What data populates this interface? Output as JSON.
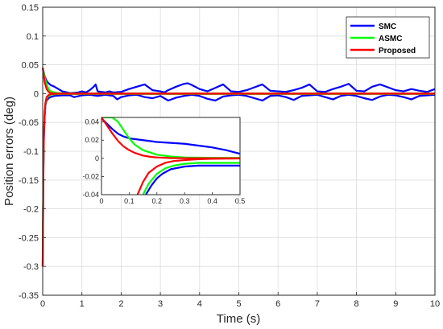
{
  "chart_data": {
    "type": "line",
    "title": "",
    "xlabel": "Time (s)",
    "ylabel": "Position errors (deg)",
    "xlim": [
      0,
      10
    ],
    "ylim": [
      -0.35,
      0.15
    ],
    "xticks": [
      "0",
      "1",
      "2",
      "3",
      "4",
      "5",
      "6",
      "7",
      "8",
      "9",
      "10"
    ],
    "yticks": [
      "0.15",
      "0.1",
      "0.05",
      "0",
      "-0.05",
      "-0.1",
      "-0.15",
      "-0.2",
      "-0.25",
      "-0.3",
      "-0.35"
    ],
    "grid": true,
    "legend_position": "top-right",
    "series": [
      {
        "name": "SMC",
        "color": "#0000ff",
        "upper": {
          "x": [
            0,
            0.05,
            0.1,
            0.15,
            0.2,
            0.3,
            0.4,
            0.5,
            0.7,
            0.9,
            1.0,
            1.1,
            1.2,
            1.3,
            1.35,
            1.4,
            1.5,
            1.6,
            1.7,
            1.8,
            2.0,
            2.2,
            2.4,
            2.6,
            2.8,
            3.0,
            3.1,
            3.2,
            3.4,
            3.6,
            3.7,
            3.8,
            4.0,
            4.2,
            4.4,
            4.6,
            4.8,
            5.0,
            5.2,
            5.4,
            5.6,
            5.8,
            6.0,
            6.2,
            6.4,
            6.6,
            6.8,
            7.0,
            7.2,
            7.4,
            7.6,
            7.8,
            8.0,
            8.2,
            8.4,
            8.6,
            8.8,
            9.0,
            9.2,
            9.4,
            9.6,
            9.8,
            10.0
          ],
          "y": [
            0.045,
            0.03,
            0.022,
            0.018,
            0.015,
            0.012,
            0.008,
            0.004,
            0.001,
            0.002,
            0.004,
            0.002,
            0.006,
            0.012,
            0.016,
            0.004,
            0.003,
            0.002,
            0.004,
            0.002,
            0.003,
            0.008,
            0.012,
            0.016,
            0.006,
            0.004,
            0.002,
            0.006,
            0.012,
            0.017,
            0.018,
            0.015,
            0.008,
            0.004,
            0.01,
            0.016,
            0.004,
            0.003,
            0.006,
            0.011,
            0.016,
            0.005,
            0.004,
            0.003,
            0.006,
            0.01,
            0.016,
            0.004,
            0.003,
            0.008,
            0.012,
            0.017,
            0.005,
            0.004,
            0.012,
            0.016,
            0.011,
            0.006,
            0.004,
            0.008,
            0.005,
            0.003,
            0.008
          ]
        },
        "lower": {
          "x": [
            0.0,
            0.01,
            0.02,
            0.03,
            0.05,
            0.07,
            0.1,
            0.15,
            0.2,
            0.3,
            0.5,
            0.7,
            0.8,
            1.0,
            1.2,
            1.4,
            1.6,
            1.8,
            1.9,
            2.0,
            2.2,
            2.4,
            2.6,
            2.8,
            3.0,
            3.2,
            3.4,
            3.6,
            3.8,
            4.0,
            4.2,
            4.4,
            4.6,
            4.8,
            5.0,
            5.2,
            5.4,
            5.6,
            5.8,
            6.0,
            6.2,
            6.4,
            6.6,
            6.8,
            7.0,
            7.2,
            7.4,
            7.6,
            7.8,
            8.0,
            8.2,
            8.4,
            8.6,
            8.8,
            9.0,
            9.2,
            9.4,
            9.6,
            9.8,
            10.0
          ],
          "y": [
            -0.3,
            -0.21,
            -0.13,
            -0.08,
            -0.04,
            -0.02,
            -0.012,
            -0.008,
            -0.006,
            -0.004,
            -0.003,
            -0.003,
            -0.006,
            -0.003,
            -0.002,
            -0.004,
            -0.002,
            -0.004,
            -0.01,
            -0.006,
            -0.003,
            -0.002,
            -0.006,
            -0.008,
            -0.004,
            -0.012,
            -0.007,
            -0.004,
            -0.002,
            -0.004,
            -0.009,
            -0.012,
            -0.005,
            -0.003,
            -0.002,
            -0.004,
            -0.008,
            -0.012,
            -0.004,
            -0.003,
            -0.006,
            -0.011,
            -0.004,
            -0.003,
            -0.002,
            -0.006,
            -0.01,
            -0.004,
            -0.002,
            -0.004,
            -0.008,
            -0.011,
            -0.005,
            -0.002,
            -0.003,
            -0.006,
            -0.01,
            -0.004,
            -0.003,
            -0.002
          ]
        }
      },
      {
        "name": "ASMC",
        "color": "#00ff00",
        "upper": {
          "x": [
            0,
            0.05,
            0.1,
            0.15,
            0.2,
            0.3,
            0.4,
            0.5,
            1.0,
            2.0,
            4.0,
            6.0,
            8.0,
            10.0
          ],
          "y": [
            0.045,
            0.028,
            0.016,
            0.008,
            0.004,
            0.002,
            0.001,
            0.0008,
            0.0005,
            0.0005,
            0.0005,
            0.0005,
            0.0005,
            0.0005
          ]
        },
        "lower": {
          "x": [
            0.0,
            0.01,
            0.02,
            0.03,
            0.05,
            0.07,
            0.1,
            0.15,
            0.2,
            0.3,
            0.4,
            0.5,
            1.0,
            2.0,
            4.0,
            6.0,
            8.0,
            10.0
          ],
          "y": [
            -0.3,
            -0.2,
            -0.12,
            -0.07,
            -0.035,
            -0.018,
            -0.009,
            -0.004,
            -0.002,
            -0.001,
            -0.0006,
            -0.0005,
            -0.0005,
            -0.0005,
            -0.0005,
            -0.0005,
            -0.0005,
            -0.0005
          ]
        }
      },
      {
        "name": "Proposed",
        "color": "#ff0000",
        "upper": {
          "x": [
            0,
            0.05,
            0.1,
            0.15,
            0.2,
            0.3,
            0.4,
            0.5,
            1.0,
            2.0,
            4.0,
            6.0,
            8.0,
            10.0
          ],
          "y": [
            0.045,
            0.02,
            0.008,
            0.003,
            0.001,
            0.0003,
            0.0001,
            0.0001,
            0.0001,
            0.0001,
            0.0001,
            0.0001,
            0.0001,
            0.0001
          ]
        },
        "lower": {
          "x": [
            0.0,
            0.01,
            0.02,
            0.03,
            0.05,
            0.07,
            0.1,
            0.15,
            0.2,
            0.3,
            0.4,
            0.5,
            1.0,
            2.0,
            4.0,
            6.0,
            8.0,
            10.0
          ],
          "y": [
            -0.3,
            -0.2,
            -0.12,
            -0.07,
            -0.034,
            -0.016,
            -0.006,
            -0.0025,
            -0.001,
            -0.0003,
            -0.0001,
            -0.0001,
            -0.0001,
            -0.0001,
            -0.0001,
            -0.0001,
            -0.0001,
            -0.0001
          ]
        }
      }
    ],
    "inset": {
      "xlim": [
        0,
        0.5
      ],
      "ylim": [
        -0.04,
        0.045
      ],
      "xticks": [
        "0",
        "0.1",
        "0.2",
        "0.3",
        "0.4",
        "0.5"
      ],
      "yticks": [
        "0.04",
        "0.02",
        "0",
        "-0.02",
        "-0.04"
      ],
      "series": [
        {
          "name": "SMC",
          "color": "#0000ff",
          "upper": {
            "x": [
              0,
              0.02,
              0.04,
              0.06,
              0.08,
              0.1,
              0.15,
              0.2,
              0.25,
              0.3,
              0.35,
              0.4,
              0.45,
              0.5
            ],
            "y": [
              0.044,
              0.038,
              0.032,
              0.027,
              0.024,
              0.022,
              0.02,
              0.018,
              0.017,
              0.016,
              0.014,
              0.012,
              0.009,
              0.005
            ]
          },
          "lower": {
            "x": [
              0.16,
              0.18,
              0.2,
              0.22,
              0.25,
              0.3,
              0.35,
              0.4,
              0.45,
              0.5
            ],
            "y": [
              -0.04,
              -0.03,
              -0.022,
              -0.017,
              -0.012,
              -0.009,
              -0.008,
              -0.008,
              -0.008,
              -0.008
            ]
          }
        },
        {
          "name": "ASMC",
          "color": "#00ff00",
          "upper": {
            "x": [
              0,
              0.02,
              0.04,
              0.06,
              0.08,
              0.1,
              0.12,
              0.15,
              0.2,
              0.25,
              0.3,
              0.4,
              0.5
            ],
            "y": [
              0.045,
              0.045,
              0.045,
              0.04,
              0.031,
              0.022,
              0.015,
              0.009,
              0.004,
              0.002,
              0.001,
              0.0005,
              0.0005
            ]
          },
          "lower": {
            "x": [
              0.15,
              0.17,
              0.2,
              0.23,
              0.26,
              0.3,
              0.35,
              0.4,
              0.5
            ],
            "y": [
              -0.04,
              -0.028,
              -0.017,
              -0.011,
              -0.008,
              -0.006,
              -0.005,
              -0.005,
              -0.005
            ]
          }
        },
        {
          "name": "Proposed",
          "color": "#ff0000",
          "upper": {
            "x": [
              0,
              0.02,
              0.04,
              0.06,
              0.08,
              0.1,
              0.12,
              0.15,
              0.18,
              0.2,
              0.25,
              0.3,
              0.4,
              0.5
            ],
            "y": [
              0.045,
              0.036,
              0.027,
              0.019,
              0.013,
              0.009,
              0.006,
              0.003,
              0.0015,
              0.001,
              0.0003,
              0.0001,
              0.0001,
              0.0001
            ]
          },
          "lower": {
            "x": [
              0.13,
              0.15,
              0.17,
              0.2,
              0.23,
              0.26,
              0.3,
              0.35,
              0.4,
              0.5
            ],
            "y": [
              -0.04,
              -0.026,
              -0.016,
              -0.009,
              -0.005,
              -0.003,
              -0.002,
              -0.001,
              -0.0005,
              -0.0002
            ]
          }
        }
      ]
    }
  }
}
